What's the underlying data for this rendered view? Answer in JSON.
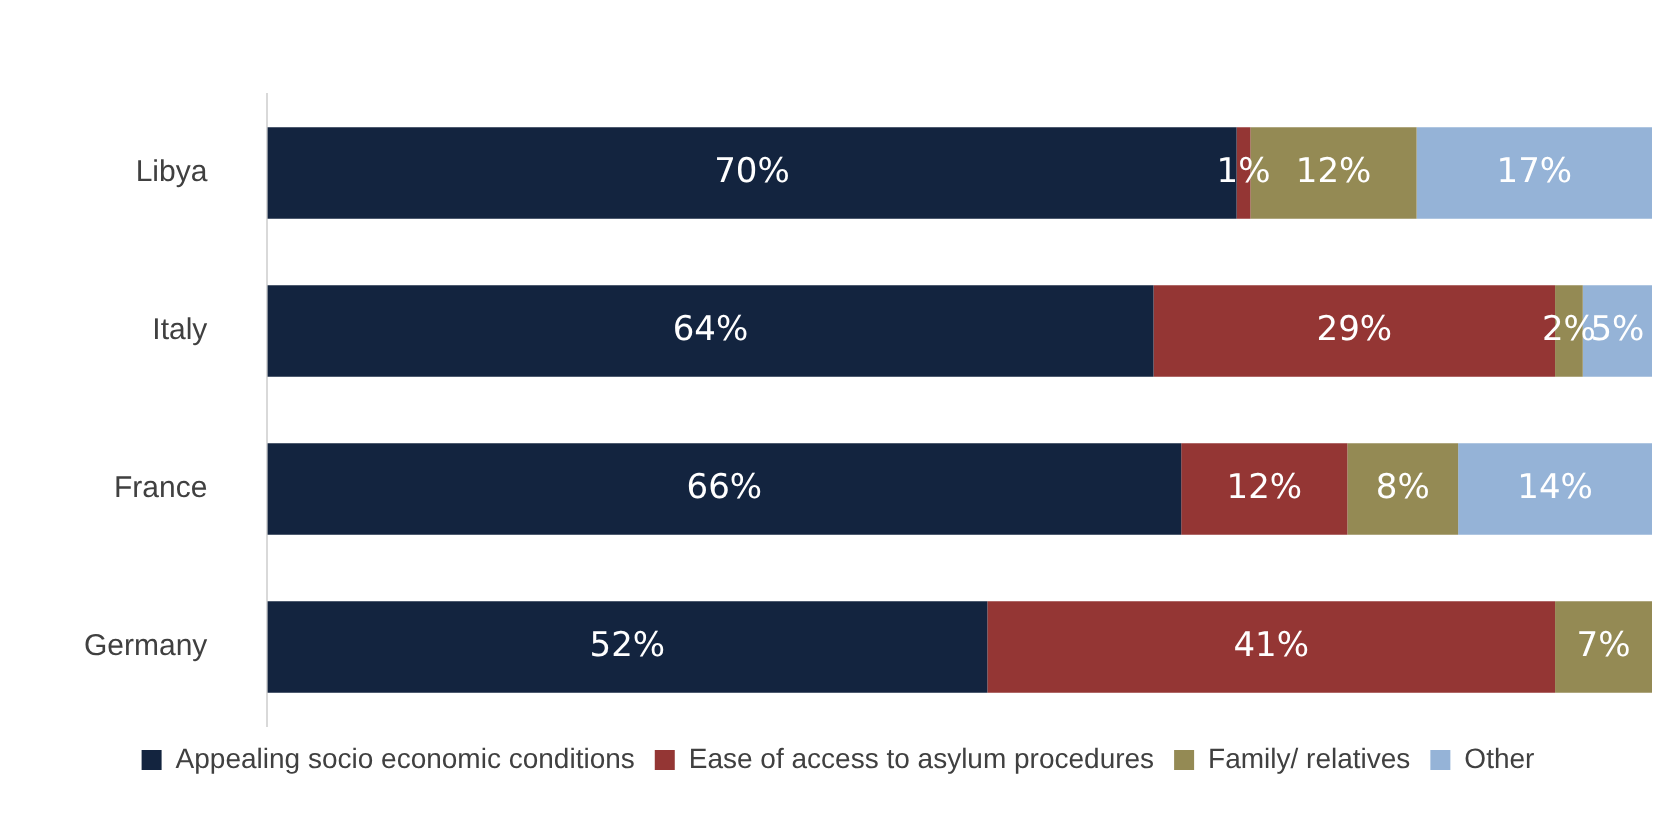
{
  "chart_data": {
    "type": "bar",
    "orientation": "horizontal",
    "stacked": true,
    "categories": [
      "Libya",
      "Italy",
      "France",
      "Germany"
    ],
    "series": [
      {
        "name": "Appealing socio economic conditions",
        "color": "#13243f",
        "values": [
          70,
          64,
          66,
          52
        ],
        "value_labels": [
          "70%",
          "64%",
          "66%",
          "52%"
        ]
      },
      {
        "name": "Ease of access to asylum procedures",
        "color": "#943634",
        "values": [
          1,
          29,
          12,
          41
        ],
        "value_labels": [
          "1%",
          "29%",
          "12%",
          "41%"
        ]
      },
      {
        "name": "Family/ relatives",
        "color": "#948a54",
        "values": [
          12,
          2,
          8,
          7
        ],
        "value_labels": [
          "12%",
          "2%",
          "8%",
          "7%"
        ]
      },
      {
        "name": "Other",
        "color": "#95b3d7",
        "values": [
          17,
          5,
          14,
          null
        ],
        "value_labels": [
          "17%",
          "5%",
          "14%",
          null
        ]
      }
    ],
    "xlim": [
      0,
      100
    ],
    "tick_labels": "y",
    "legend": "bottom"
  }
}
